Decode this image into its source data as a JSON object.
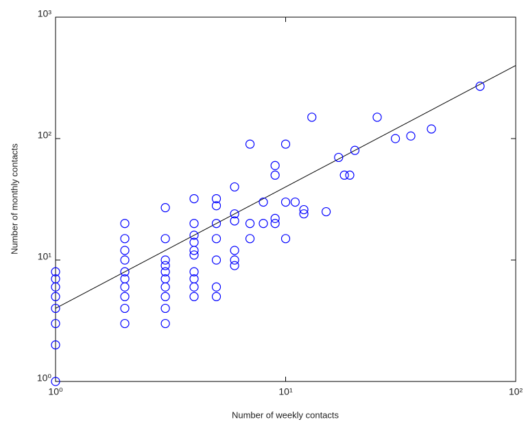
{
  "chart_data": {
    "type": "scatter",
    "x_label": "Number of weekly contacts",
    "y_label": "Number of monthly contacts",
    "xscale": "log",
    "yscale": "log",
    "xlim": [
      1,
      100
    ],
    "ylim": [
      1,
      1000
    ],
    "xticks": [
      {
        "value": 1,
        "label": "10⁰"
      },
      {
        "value": 10,
        "label": "10¹"
      },
      {
        "value": 100,
        "label": "10²"
      }
    ],
    "yticks": [
      {
        "value": 1,
        "label": "10⁰"
      },
      {
        "value": 10,
        "label": "10¹"
      },
      {
        "value": 100,
        "label": "10²"
      },
      {
        "value": 1000,
        "label": "10³"
      }
    ],
    "marker_color": "#0000ff",
    "line_color": "#000000",
    "x": [
      1,
      1,
      1,
      1,
      1,
      1,
      1,
      1,
      2,
      2,
      2,
      2,
      2,
      2,
      2,
      2,
      2,
      2,
      3,
      3,
      3,
      3,
      3,
      3,
      3,
      3,
      3,
      3,
      4,
      4,
      4,
      4,
      4,
      4,
      4,
      4,
      4,
      4,
      5,
      5,
      5,
      5,
      5,
      5,
      5,
      6,
      6,
      6,
      6,
      6,
      6,
      7,
      7,
      7,
      8,
      8,
      9,
      9,
      9,
      9,
      10,
      10,
      10,
      11,
      12,
      12,
      13,
      15,
      17,
      18,
      19,
      20,
      25,
      30,
      35,
      43,
      70
    ],
    "y": [
      1,
      2,
      3,
      4,
      5,
      6,
      7,
      8,
      20,
      15,
      12,
      10,
      8,
      7,
      6,
      5,
      4,
      3,
      27,
      15,
      10,
      9,
      8,
      7,
      6,
      5,
      4,
      3,
      32,
      20,
      16,
      14,
      12,
      11,
      8,
      7,
      6,
      5,
      32,
      28,
      20,
      15,
      10,
      6,
      5,
      40,
      24,
      21,
      12,
      10,
      9,
      90,
      20,
      15,
      30,
      20,
      60,
      50,
      22,
      20,
      90,
      30,
      15,
      30,
      26,
      24,
      150,
      25,
      70,
      50,
      50,
      80,
      150,
      100,
      105,
      120,
      270
    ],
    "fit_line": {
      "x": [
        1,
        100
      ],
      "y": [
        4,
        400
      ]
    }
  }
}
